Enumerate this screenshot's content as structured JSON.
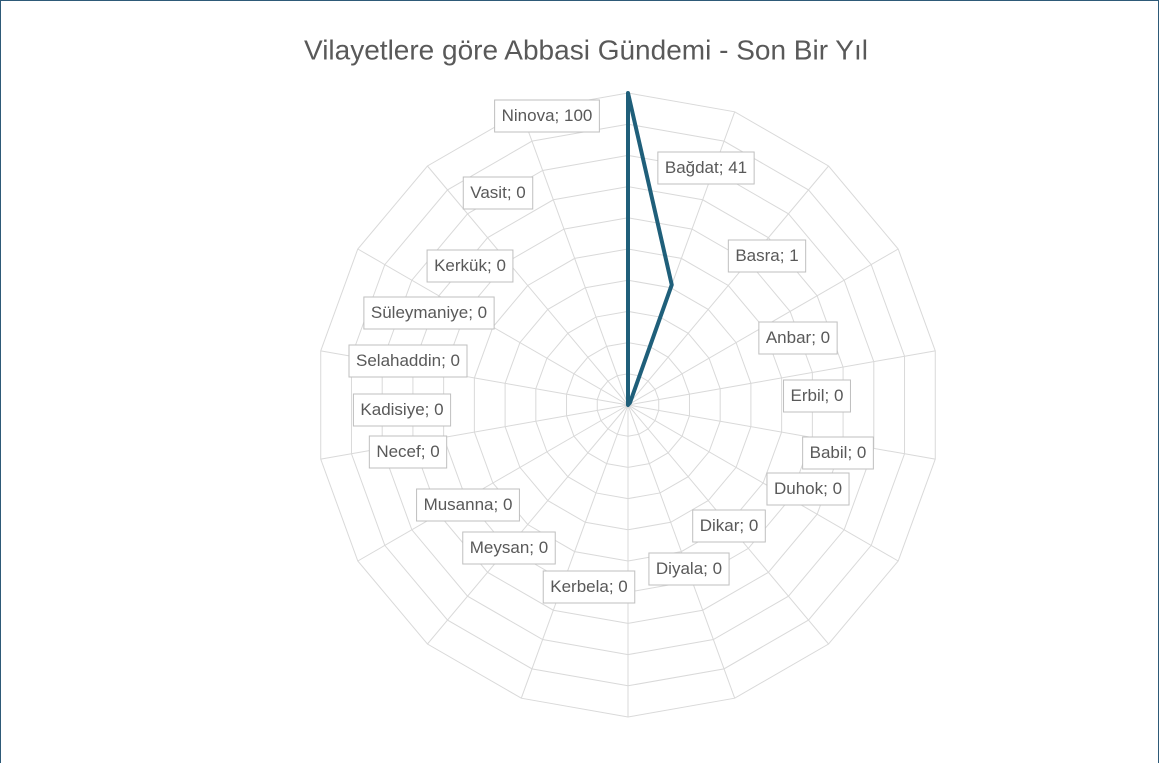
{
  "chart_data": {
    "type": "radar",
    "title": "Vilayetlere göre Abbasi Gündemi - Son Bir Yıl",
    "categories": [
      "Ninova",
      "Bağdat",
      "Basra",
      "Anbar",
      "Erbil",
      "Babil",
      "Duhok",
      "Dikar",
      "Diyala",
      "Kerbela",
      "Meysan",
      "Musanna",
      "Necef",
      "Kadisiye",
      "Selahaddin",
      "Süleymaniye",
      "Kerkük",
      "Vasit"
    ],
    "values": [
      100,
      41,
      1,
      0,
      0,
      0,
      0,
      0,
      0,
      0,
      0,
      0,
      0,
      0,
      0,
      0,
      0,
      0
    ],
    "label_separator": "; ",
    "color": "#1f5f7a",
    "ylim": [
      0,
      100
    ],
    "yticks": [
      0,
      10,
      20,
      30,
      40,
      50,
      60,
      70,
      80,
      90,
      100
    ],
    "grid": true
  }
}
